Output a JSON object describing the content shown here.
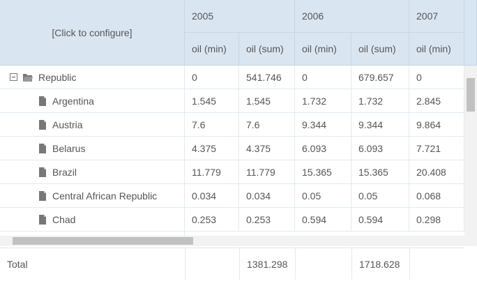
{
  "header": {
    "configure": "[Click to configure]",
    "years": [
      "2005",
      "2006",
      "2007"
    ],
    "measures": [
      "oil (min)",
      "oil (sum)",
      "oil (min)",
      "oil (sum)",
      "oil (min)"
    ]
  },
  "rows": [
    {
      "label": "Republic",
      "values": [
        0,
        541.746,
        0,
        679.657,
        0
      ]
    },
    {
      "label": "Argentina",
      "values": [
        1.545,
        1.545,
        1.732,
        1.732,
        2.845
      ]
    },
    {
      "label": "Austria",
      "values": [
        7.6,
        7.6,
        9.344,
        9.344,
        9.864
      ]
    },
    {
      "label": "Belarus",
      "values": [
        4.375,
        4.375,
        6.093,
        6.093,
        7.721
      ]
    },
    {
      "label": "Brazil",
      "values": [
        11.779,
        11.779,
        15.365,
        15.365,
        20.408
      ]
    },
    {
      "label": "Central African Republic",
      "values": [
        0.034,
        0.034,
        0.05,
        0.05,
        0.068
      ]
    },
    {
      "label": "Chad",
      "values": [
        0.253,
        0.253,
        0.594,
        0.594,
        0.298
      ]
    }
  ],
  "total": {
    "label": "Total",
    "values": [
      null,
      1381.298,
      null,
      1718.628,
      null
    ]
  }
}
